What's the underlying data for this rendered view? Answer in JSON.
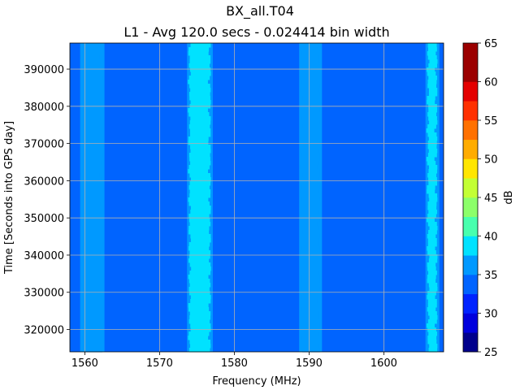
{
  "chart_data": {
    "type": "heatmap",
    "title": "BX_all.T04",
    "subtitle": "L1 - Avg 120.0 secs - 0.024414 bin width",
    "xlabel": "Frequency (MHz)",
    "ylabel": "Time [Seconds into GPS day]",
    "xlim": [
      1558,
      1608
    ],
    "ylim": [
      314000,
      397000
    ],
    "x_ticks": [
      1560,
      1570,
      1580,
      1590,
      1600
    ],
    "y_ticks": [
      320000,
      330000,
      340000,
      350000,
      360000,
      370000,
      380000,
      390000
    ],
    "grid": true,
    "colorbar": {
      "label": "dB",
      "range": [
        25,
        65
      ],
      "ticks": [
        25,
        30,
        35,
        40,
        45,
        50,
        55,
        60,
        65
      ],
      "levels": [
        25,
        27.5,
        30,
        32.5,
        35,
        37.5,
        40,
        42.5,
        45,
        47.5,
        50,
        52.5,
        55,
        57.5,
        60,
        62.5,
        65
      ],
      "colors": [
        "#00008c",
        "#0000dd",
        "#0023ff",
        "#0064ff",
        "#0099ff",
        "#00e2ff",
        "#48ffae",
        "#8cff6a",
        "#c3ff34",
        "#ffe600",
        "#ffac00",
        "#ff7100",
        "#ff3000",
        "#e40000",
        "#9b0000"
      ]
    },
    "background_level_db": 34,
    "bands": [
      {
        "center_mhz": 1561.0,
        "width_mhz": 2.6,
        "level_db": 36
      },
      {
        "center_mhz": 1575.4,
        "width_mhz": 2.8,
        "level_db": 39
      },
      {
        "center_mhz": 1590.2,
        "width_mhz": 2.4,
        "level_db": 37
      },
      {
        "center_mhz": 1606.5,
        "width_mhz": 1.2,
        "level_db": 38
      }
    ]
  }
}
